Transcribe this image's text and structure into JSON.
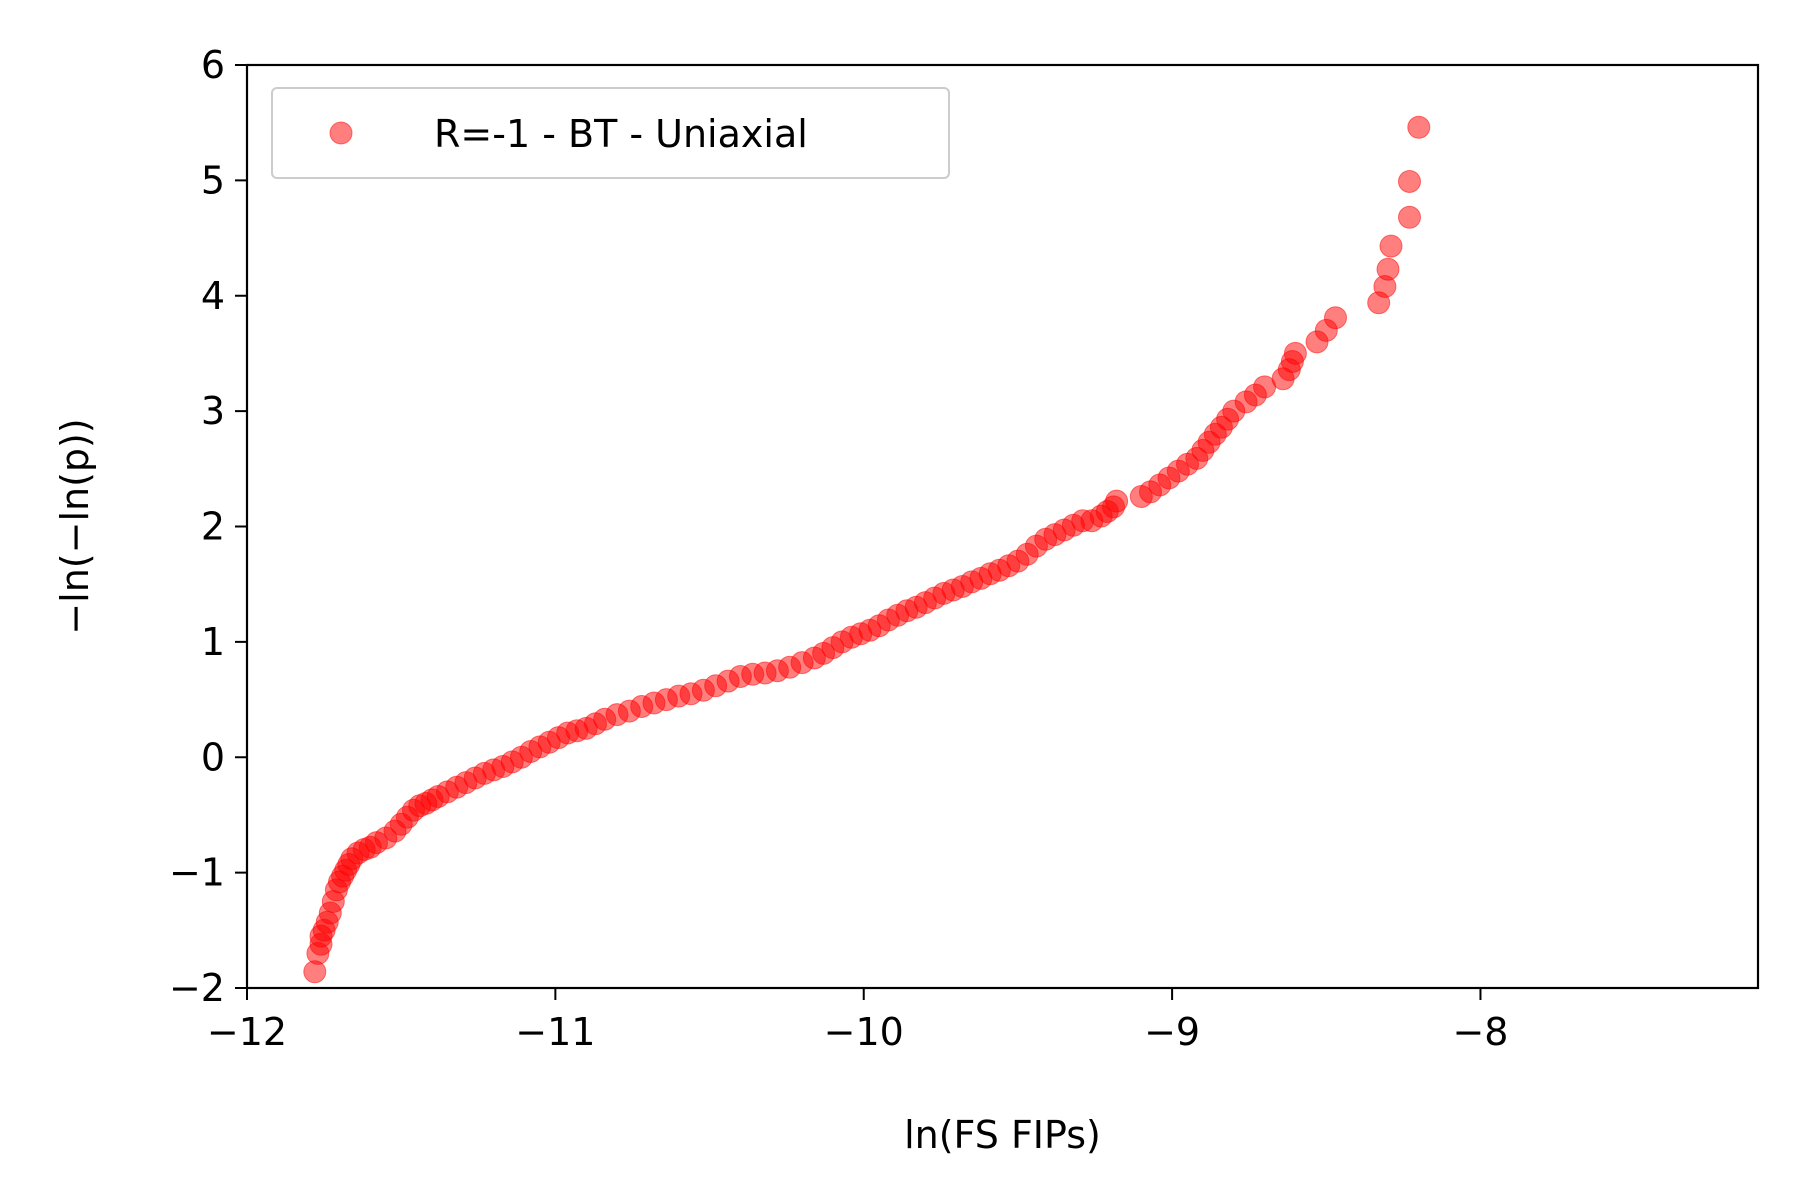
{
  "chart_data": {
    "type": "scatter",
    "xlabel": "ln(FS FIPs)",
    "ylabel": "−ln(−ln(p))",
    "xlim": [
      -12,
      -7.1
    ],
    "ylim": [
      -2,
      6
    ],
    "xticks": [
      -12,
      -11,
      -10,
      -9,
      -8
    ],
    "yticks": [
      -2,
      -1,
      0,
      1,
      2,
      3,
      4,
      5,
      6
    ],
    "xtick_labels": [
      "−12",
      "−11",
      "−10",
      "−9",
      "−8"
    ],
    "ytick_labels": [
      "−2",
      "−1",
      "0",
      "1",
      "2",
      "3",
      "4",
      "5",
      "6"
    ],
    "grid": false,
    "legend_position": "top-left",
    "series": [
      {
        "name": "R=-1 - BT - Uniaxial",
        "color": "#ff0000",
        "opacity": 0.5,
        "x": [
          -11.78,
          -11.77,
          -11.76,
          -11.76,
          -11.75,
          -11.74,
          -11.73,
          -11.72,
          -11.71,
          -11.7,
          -11.69,
          -11.68,
          -11.67,
          -11.66,
          -11.64,
          -11.62,
          -11.6,
          -11.58,
          -11.55,
          -11.52,
          -11.5,
          -11.48,
          -11.46,
          -11.44,
          -11.42,
          -11.4,
          -11.38,
          -11.35,
          -11.32,
          -11.29,
          -11.26,
          -11.23,
          -11.2,
          -11.17,
          -11.14,
          -11.11,
          -11.08,
          -11.05,
          -11.02,
          -10.99,
          -10.96,
          -10.93,
          -10.9,
          -10.87,
          -10.84,
          -10.8,
          -10.76,
          -10.72,
          -10.68,
          -10.64,
          -10.6,
          -10.56,
          -10.52,
          -10.48,
          -10.44,
          -10.4,
          -10.36,
          -10.32,
          -10.28,
          -10.24,
          -10.2,
          -10.16,
          -10.13,
          -10.1,
          -10.07,
          -10.04,
          -10.01,
          -9.98,
          -9.95,
          -9.92,
          -9.89,
          -9.86,
          -9.83,
          -9.8,
          -9.77,
          -9.74,
          -9.71,
          -9.68,
          -9.65,
          -9.62,
          -9.59,
          -9.56,
          -9.53,
          -9.5,
          -9.47,
          -9.44,
          -9.41,
          -9.38,
          -9.35,
          -9.32,
          -9.29,
          -9.26,
          -9.23,
          -9.21,
          -9.19,
          -9.18,
          -9.1,
          -9.07,
          -9.04,
          -9.01,
          -8.98,
          -8.95,
          -8.92,
          -8.9,
          -8.88,
          -8.86,
          -8.84,
          -8.82,
          -8.8,
          -8.76,
          -8.73,
          -8.7,
          -8.64,
          -8.62,
          -8.61,
          -8.6,
          -8.53,
          -8.5,
          -8.47,
          -8.33,
          -8.31,
          -8.3,
          -8.29,
          -8.23,
          -8.23,
          -8.2
        ],
        "y": [
          -1.86,
          -1.7,
          -1.62,
          -1.55,
          -1.5,
          -1.43,
          -1.35,
          -1.25,
          -1.15,
          -1.08,
          -1.03,
          -0.98,
          -0.93,
          -0.88,
          -0.83,
          -0.8,
          -0.78,
          -0.74,
          -0.7,
          -0.64,
          -0.58,
          -0.52,
          -0.46,
          -0.42,
          -0.4,
          -0.37,
          -0.34,
          -0.3,
          -0.26,
          -0.22,
          -0.18,
          -0.14,
          -0.11,
          -0.08,
          -0.04,
          0.0,
          0.05,
          0.09,
          0.13,
          0.17,
          0.21,
          0.23,
          0.25,
          0.29,
          0.33,
          0.37,
          0.4,
          0.44,
          0.47,
          0.5,
          0.53,
          0.55,
          0.58,
          0.62,
          0.66,
          0.7,
          0.72,
          0.73,
          0.75,
          0.78,
          0.82,
          0.86,
          0.9,
          0.95,
          1.0,
          1.04,
          1.07,
          1.1,
          1.14,
          1.19,
          1.23,
          1.27,
          1.3,
          1.34,
          1.38,
          1.42,
          1.45,
          1.48,
          1.52,
          1.55,
          1.59,
          1.62,
          1.66,
          1.7,
          1.76,
          1.83,
          1.89,
          1.93,
          1.97,
          2.01,
          2.05,
          2.05,
          2.09,
          2.13,
          2.17,
          2.22,
          2.26,
          2.3,
          2.36,
          2.42,
          2.48,
          2.54,
          2.59,
          2.66,
          2.73,
          2.8,
          2.86,
          2.93,
          3.0,
          3.08,
          3.14,
          3.21,
          3.28,
          3.36,
          3.43,
          3.5,
          3.6,
          3.7,
          3.81,
          3.94,
          4.08,
          4.23,
          4.43,
          4.68,
          4.99,
          5.46
        ]
      }
    ]
  }
}
